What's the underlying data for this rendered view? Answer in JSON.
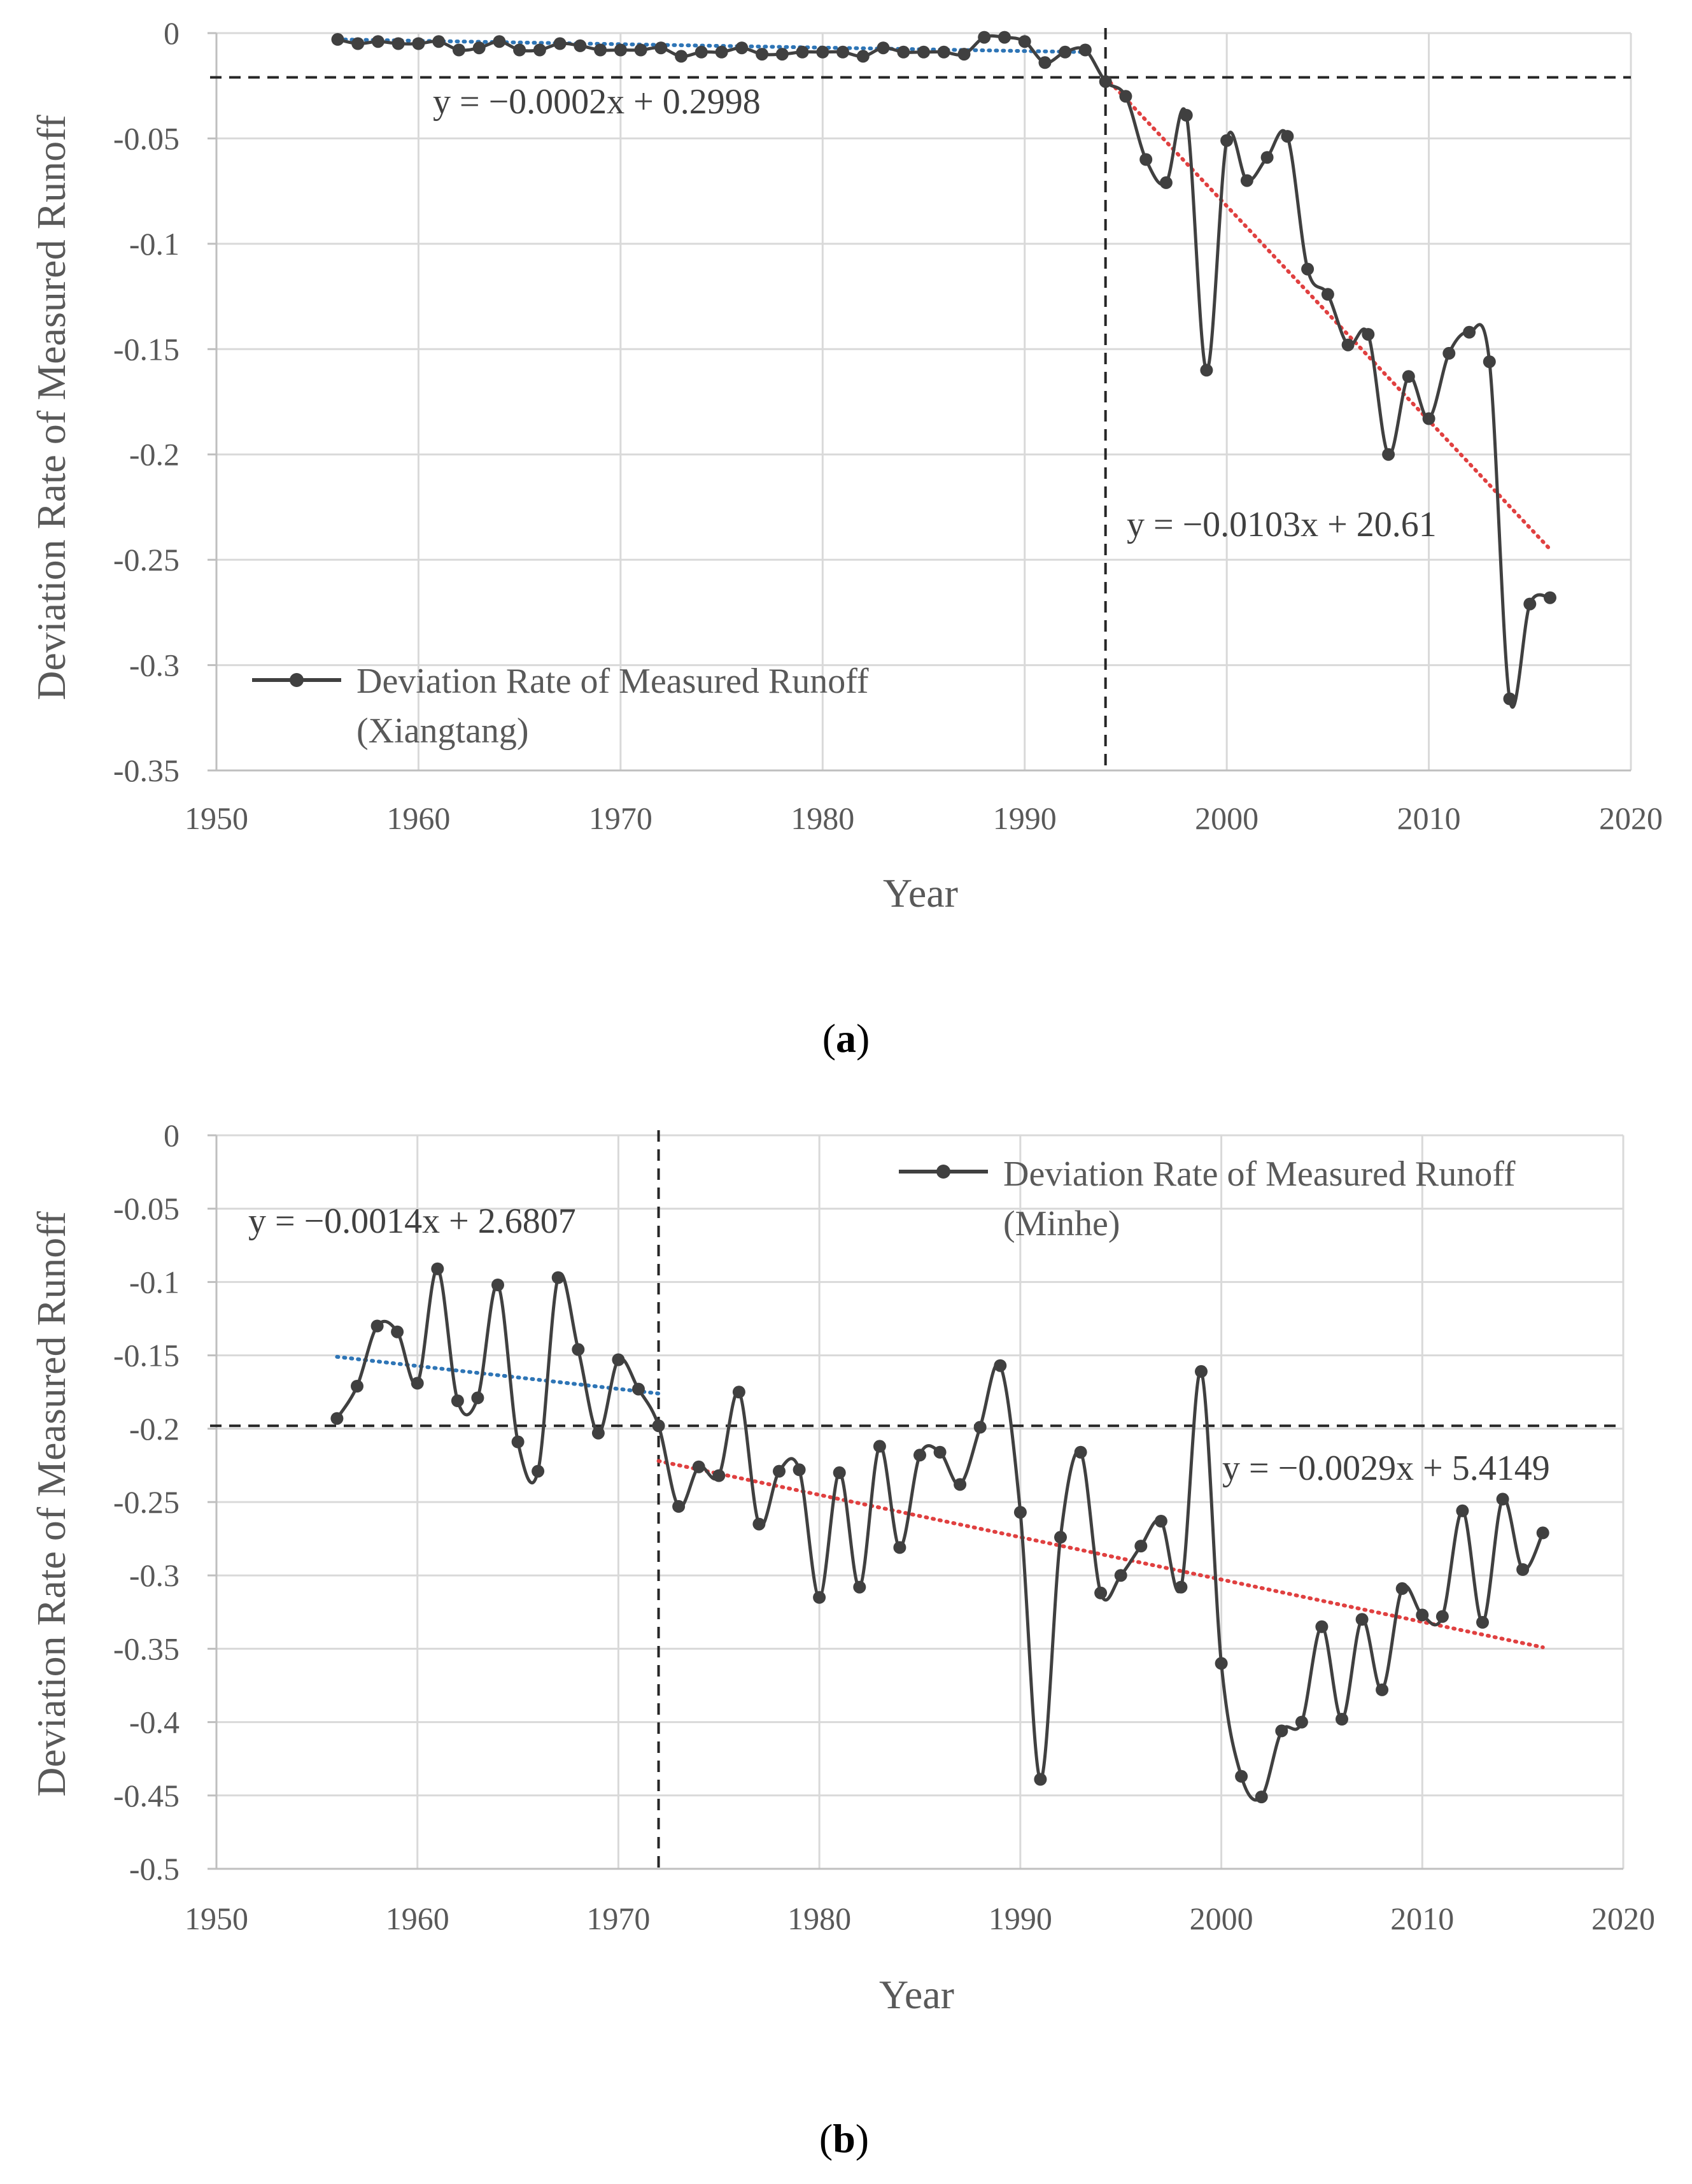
{
  "chart_data": [
    {
      "type": "line",
      "panel_label": "a",
      "xlabel": "Year",
      "ylabel": "Deviation Rate of Measured Runoff",
      "xlim": [
        1950,
        2020
      ],
      "ylim": [
        -0.35,
        0
      ],
      "x_ticks": [
        "1950",
        "1960",
        "1970",
        "1980",
        "1990",
        "2000",
        "2010",
        "2020"
      ],
      "y_ticks": [
        "0",
        "-0.05",
        "-0.1",
        "-0.15",
        "-0.2",
        "-0.25",
        "-0.3",
        "-0.35"
      ],
      "grid": true,
      "legend": {
        "line1": "Deviation Rate of Measured Runoff",
        "line2": "(Xiangtang)",
        "position": "bottom-left"
      },
      "series": [
        {
          "name": "Deviation Rate of Measured Runoff (Xiangtang)",
          "color": "#404040",
          "x": [
            1956,
            1957,
            1958,
            1959,
            1960,
            1961,
            1962,
            1963,
            1964,
            1965,
            1966,
            1967,
            1968,
            1969,
            1970,
            1971,
            1972,
            1973,
            1974,
            1975,
            1976,
            1977,
            1978,
            1979,
            1980,
            1981,
            1982,
            1983,
            1984,
            1985,
            1986,
            1987,
            1988,
            1989,
            1990,
            1991,
            1992,
            1993,
            1994,
            1995,
            1996,
            1997,
            1998,
            1999,
            2000,
            2001,
            2002,
            2003,
            2004,
            2005,
            2006,
            2007,
            2008,
            2009,
            2010,
            2011,
            2012,
            2013,
            2014,
            2015,
            2016
          ],
          "y": [
            -0.003,
            -0.005,
            -0.004,
            -0.005,
            -0.005,
            -0.004,
            -0.008,
            -0.007,
            -0.004,
            -0.008,
            -0.008,
            -0.005,
            -0.006,
            -0.008,
            -0.008,
            -0.008,
            -0.007,
            -0.011,
            -0.009,
            -0.009,
            -0.007,
            -0.01,
            -0.01,
            -0.009,
            -0.009,
            -0.009,
            -0.011,
            -0.007,
            -0.009,
            -0.009,
            -0.009,
            -0.01,
            -0.002,
            -0.002,
            -0.004,
            -0.014,
            -0.009,
            -0.008,
            -0.023,
            -0.03,
            -0.06,
            -0.071,
            -0.039,
            -0.16,
            -0.051,
            -0.07,
            -0.059,
            -0.049,
            -0.112,
            -0.124,
            -0.148,
            -0.143,
            -0.2,
            -0.163,
            -0.183,
            -0.152,
            -0.142,
            -0.156,
            -0.316,
            -0.271,
            -0.268
          ]
        }
      ],
      "breakpoint": {
        "x": 1994,
        "y": -0.021
      },
      "trendlines": [
        {
          "equation": "y = −0.0002x + 0.2998",
          "slope": -0.0002,
          "intercept": 0.2998,
          "x_range": [
            1956,
            1993
          ],
          "y_range": [
            -0.003,
            -0.009
          ],
          "color": "#2E75B6"
        },
        {
          "equation": "y = −0.0103x + 20.61",
          "slope": -0.0103,
          "intercept": 20.61,
          "x_range": [
            1994,
            2016
          ],
          "y_range": [
            -0.021,
            -0.245
          ],
          "color": "#E04040"
        }
      ]
    },
    {
      "type": "line",
      "panel_label": "b",
      "xlabel": "Year",
      "ylabel": "Deviation Rate of Measured Runoff",
      "xlim": [
        1950,
        2020
      ],
      "ylim": [
        -0.5,
        0
      ],
      "x_ticks": [
        "1950",
        "1960",
        "1970",
        "1980",
        "1990",
        "2000",
        "2010",
        "2020"
      ],
      "y_ticks": [
        "0",
        "-0.05",
        "-0.1",
        "-0.15",
        "-0.2",
        "-0.25",
        "-0.3",
        "-0.35",
        "-0.4",
        "-0.45",
        "-0.5"
      ],
      "grid": true,
      "legend": {
        "line1": "Deviation Rate of Measured Runoff",
        "line2": "(Minhe)",
        "position": "top-right"
      },
      "series": [
        {
          "name": "Deviation Rate of Measured Runoff (Minhe)",
          "color": "#404040",
          "x": [
            1956,
            1957,
            1958,
            1959,
            1960,
            1961,
            1962,
            1963,
            1964,
            1965,
            1966,
            1967,
            1968,
            1969,
            1970,
            1971,
            1972,
            1973,
            1974,
            1975,
            1976,
            1977,
            1978,
            1979,
            1980,
            1981,
            1982,
            1983,
            1984,
            1985,
            1986,
            1987,
            1988,
            1989,
            1990,
            1991,
            1992,
            1993,
            1994,
            1995,
            1996,
            1997,
            1998,
            1999,
            2000,
            2001,
            2002,
            2003,
            2004,
            2005,
            2006,
            2007,
            2008,
            2009,
            2010,
            2011,
            2012,
            2013,
            2014,
            2015,
            2016
          ],
          "y": [
            -0.193,
            -0.171,
            -0.13,
            -0.134,
            -0.169,
            -0.091,
            -0.181,
            -0.179,
            -0.102,
            -0.209,
            -0.229,
            -0.097,
            -0.146,
            -0.203,
            -0.153,
            -0.173,
            -0.198,
            -0.253,
            -0.226,
            -0.232,
            -0.175,
            -0.265,
            -0.229,
            -0.228,
            -0.315,
            -0.23,
            -0.308,
            -0.212,
            -0.281,
            -0.218,
            -0.216,
            -0.238,
            -0.199,
            -0.157,
            -0.257,
            -0.439,
            -0.274,
            -0.216,
            -0.312,
            -0.3,
            -0.28,
            -0.263,
            -0.308,
            -0.161,
            -0.36,
            -0.437,
            -0.451,
            -0.406,
            -0.4,
            -0.335,
            -0.398,
            -0.33,
            -0.378,
            -0.309,
            -0.327,
            -0.328,
            -0.256,
            -0.332,
            -0.248,
            -0.296,
            -0.271
          ]
        }
      ],
      "breakpoint": {
        "x": 1972,
        "y": -0.198
      },
      "trendlines": [
        {
          "equation": "y = −0.0014x + 2.6807",
          "slope": -0.0014,
          "intercept": 2.6807,
          "x_range": [
            1956,
            1972
          ],
          "y_range": [
            -0.151,
            -0.176
          ],
          "color": "#2E75B6"
        },
        {
          "equation": "y = −0.0029x + 5.4149",
          "slope": -0.0029,
          "intercept": 5.4149,
          "x_range": [
            1972,
            2016
          ],
          "y_range": [
            -0.222,
            -0.349
          ],
          "color": "#E04040"
        }
      ]
    }
  ],
  "colors": {
    "gridline": "#D9D9D9",
    "axis": "#BFBFBF",
    "dashed": "#262626"
  }
}
